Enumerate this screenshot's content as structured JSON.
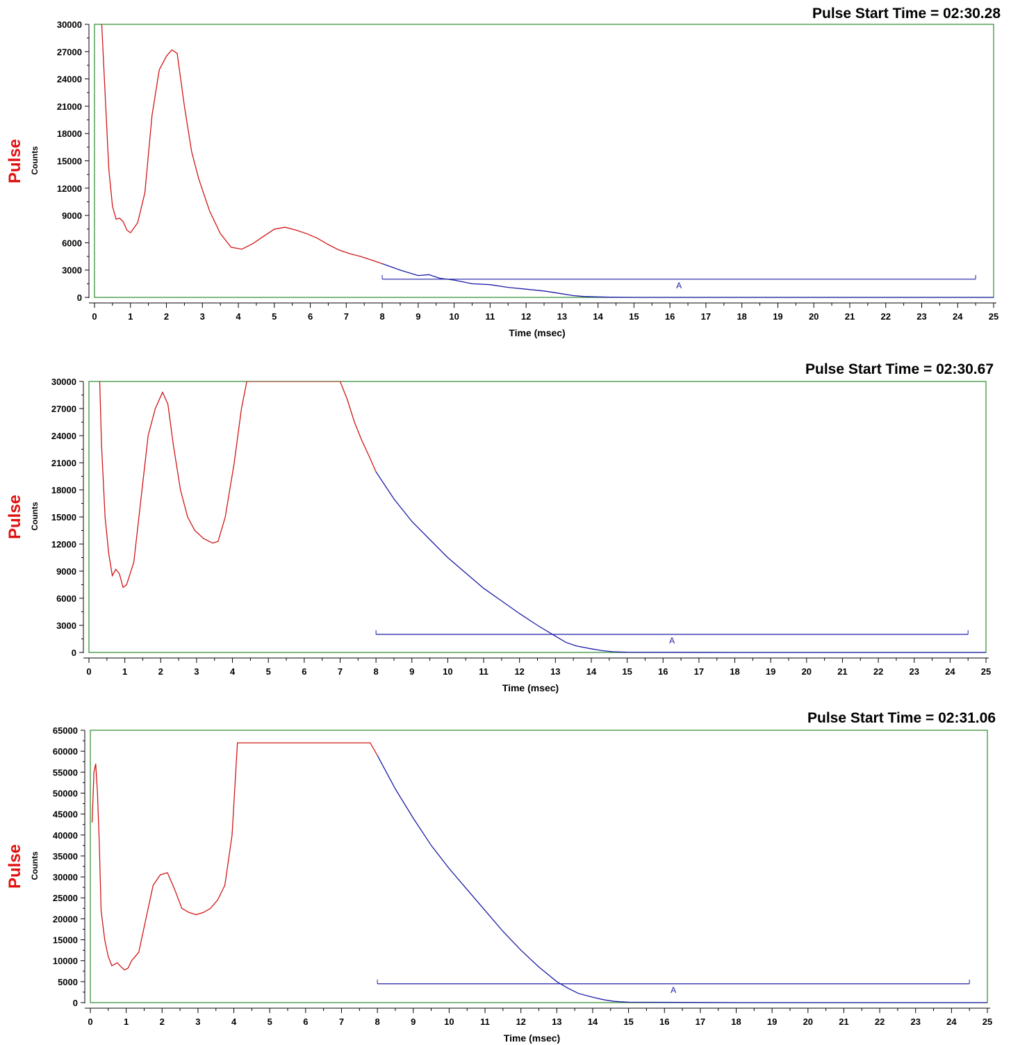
{
  "colors": {
    "pre_marker_trace": "#d01515",
    "post_marker_trace": "#1a1aa6",
    "frame": "#2a8a2a",
    "marker_bar": "#1a1aa6",
    "pulse_label": "#e01010"
  },
  "chart_data": [
    {
      "type": "line",
      "title": "Pulse Start Time = 02:30.28",
      "side_label": "Pulse",
      "ylabel": "Counts",
      "xlabel": "Time (msec)",
      "xlim": [
        0,
        25
      ],
      "ylim": [
        0,
        30000
      ],
      "yticks": [
        0,
        3000,
        6000,
        9000,
        12000,
        15000,
        18000,
        21000,
        24000,
        27000,
        30000
      ],
      "xticks": [
        0,
        1,
        2,
        3,
        4,
        5,
        6,
        7,
        8,
        9,
        10,
        11,
        12,
        13,
        14,
        15,
        16,
        17,
        18,
        19,
        20,
        21,
        22,
        23,
        24,
        25
      ],
      "marker": {
        "label": "A",
        "x_start": 8,
        "x_end": 24.5,
        "y": 2000
      },
      "series": [
        {
          "segment": "before-marker",
          "x": [
            0.2,
            0.3,
            0.4,
            0.5,
            0.6,
            0.7,
            0.8,
            0.9,
            1.0,
            1.2,
            1.4,
            1.6,
            1.8,
            2.0,
            2.15,
            2.3,
            2.5,
            2.7,
            2.9,
            3.2,
            3.5,
            3.8,
            4.1,
            4.4,
            4.7,
            5.0,
            5.3,
            5.6,
            5.9,
            6.2,
            6.5,
            6.8,
            7.1,
            7.4,
            7.7,
            8.0
          ],
          "values": [
            30000,
            22000,
            14000,
            10000,
            8600,
            8700,
            8300,
            7400,
            7100,
            8200,
            11500,
            20000,
            25000,
            26500,
            27200,
            26800,
            21000,
            16000,
            13000,
            9500,
            7000,
            5500,
            5300,
            5900,
            6700,
            7500,
            7700,
            7400,
            7000,
            6500,
            5800,
            5200,
            4800,
            4500,
            4100,
            3700
          ]
        },
        {
          "segment": "after-marker",
          "x": [
            8.0,
            8.5,
            9.0,
            9.3,
            9.6,
            10.0,
            10.5,
            11.0,
            11.5,
            12.0,
            12.5,
            13.0,
            13.3,
            13.6,
            14.0,
            14.3,
            15.0,
            18.0,
            21.0,
            25.0
          ],
          "values": [
            3700,
            3000,
            2400,
            2500,
            2100,
            1900,
            1500,
            1400,
            1100,
            900,
            700,
            400,
            200,
            100,
            50,
            20,
            0,
            0,
            0,
            0
          ]
        }
      ]
    },
    {
      "type": "line",
      "title": "Pulse Start Time = 02:30.67",
      "side_label": "Pulse",
      "ylabel": "Counts",
      "xlabel": "Time (msec)",
      "xlim": [
        0,
        25
      ],
      "ylim": [
        0,
        30000
      ],
      "yticks": [
        0,
        3000,
        6000,
        9000,
        12000,
        15000,
        18000,
        21000,
        24000,
        27000,
        30000
      ],
      "xticks": [
        0,
        1,
        2,
        3,
        4,
        5,
        6,
        7,
        8,
        9,
        10,
        11,
        12,
        13,
        14,
        15,
        16,
        17,
        18,
        19,
        20,
        21,
        22,
        23,
        24,
        25
      ],
      "marker": {
        "label": "A",
        "x_start": 8,
        "x_end": 24.5,
        "y": 2000
      },
      "series": [
        {
          "segment": "before-marker",
          "x": [
            0.3,
            0.35,
            0.45,
            0.55,
            0.65,
            0.75,
            0.85,
            0.95,
            1.05,
            1.25,
            1.45,
            1.65,
            1.85,
            2.05,
            2.2,
            2.35,
            2.55,
            2.75,
            2.95,
            3.2,
            3.45,
            3.6,
            3.8,
            4.05,
            4.25,
            4.4,
            7.0,
            7.2,
            7.4,
            7.6,
            7.8,
            8.0
          ],
          "values": [
            30000,
            23000,
            15000,
            11000,
            8500,
            9200,
            8700,
            7200,
            7500,
            10000,
            17000,
            24000,
            27000,
            28800,
            27500,
            23000,
            18000,
            15000,
            13500,
            12600,
            12100,
            12300,
            15000,
            21000,
            27000,
            30000,
            30000,
            28000,
            25500,
            23500,
            21800,
            20000
          ]
        },
        {
          "segment": "after-marker",
          "x": [
            8.0,
            8.5,
            9.0,
            9.5,
            10.0,
            10.5,
            11.0,
            11.5,
            12.0,
            12.5,
            13.0,
            13.3,
            13.6,
            14.0,
            14.3,
            14.6,
            15.0,
            18.0,
            21.0,
            25.0
          ],
          "values": [
            20000,
            17000,
            14500,
            12500,
            10500,
            8800,
            7100,
            5700,
            4300,
            3000,
            1800,
            1100,
            700,
            400,
            200,
            80,
            20,
            0,
            0,
            0
          ]
        }
      ]
    },
    {
      "type": "line",
      "title": "Pulse Start Time = 02:31.06",
      "side_label": "Pulse",
      "ylabel": "Counts",
      "xlabel": "Time (msec)",
      "xlim": [
        0,
        25
      ],
      "ylim": [
        0,
        65000
      ],
      "yticks": [
        0,
        5000,
        10000,
        15000,
        20000,
        25000,
        30000,
        35000,
        40000,
        45000,
        50000,
        55000,
        60000,
        65000
      ],
      "xticks": [
        0,
        1,
        2,
        3,
        4,
        5,
        6,
        7,
        8,
        9,
        10,
        11,
        12,
        13,
        14,
        15,
        16,
        17,
        18,
        19,
        20,
        21,
        22,
        23,
        24,
        25
      ],
      "marker": {
        "label": "A",
        "x_start": 8,
        "x_end": 24.5,
        "y": 4500
      },
      "series": [
        {
          "segment": "before-marker",
          "x": [
            0.05,
            0.1,
            0.15,
            0.2,
            0.25,
            0.3,
            0.4,
            0.5,
            0.6,
            0.75,
            0.85,
            0.95,
            1.05,
            1.15,
            1.35,
            1.55,
            1.75,
            1.95,
            2.15,
            2.35,
            2.55,
            2.75,
            2.95,
            3.15,
            3.35,
            3.55,
            3.75,
            3.95,
            4.1,
            7.8,
            8.0
          ],
          "values": [
            43000,
            55000,
            57000,
            50000,
            38000,
            22000,
            15000,
            11000,
            8800,
            9500,
            8600,
            7800,
            8200,
            10000,
            12000,
            20000,
            28000,
            30500,
            31000,
            27000,
            22500,
            21500,
            21000,
            21500,
            22500,
            24500,
            28000,
            40000,
            62000,
            62000,
            59000
          ]
        },
        {
          "segment": "after-marker",
          "x": [
            8.0,
            8.5,
            9.0,
            9.5,
            10.0,
            10.5,
            11.0,
            11.5,
            12.0,
            12.5,
            13.0,
            13.3,
            13.6,
            14.0,
            14.3,
            14.6,
            15.0,
            18.0,
            21.0,
            25.0
          ],
          "values": [
            59000,
            51000,
            44000,
            37500,
            32000,
            27000,
            22000,
            17000,
            12500,
            8500,
            5000,
            3500,
            2200,
            1300,
            700,
            300,
            100,
            0,
            0,
            0
          ]
        }
      ]
    }
  ]
}
